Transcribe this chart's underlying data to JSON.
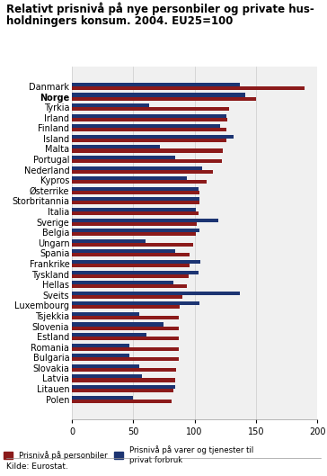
{
  "title_line1": "Relativt prisnivå på nye personbiler og private hus-",
  "title_line2": "holdningers konsum. 2004. EU25=100",
  "countries": [
    "Danmark",
    "Norge",
    "Tyrkia",
    "Irland",
    "Finland",
    "Island",
    "Malta",
    "Portugal",
    "Nederland",
    "Kypros",
    "Østerrike",
    "Storbritannia",
    "Italia",
    "Sverige",
    "Belgia",
    "Ungarn",
    "Spania",
    "Frankrike",
    "Tyskland",
    "Hellas",
    "Sveits",
    "Luxembourg",
    "Tsjekkia",
    "Slovenia",
    "Estland",
    "Romania",
    "Bulgaria",
    "Slovakia",
    "Latvia",
    "Litauen",
    "Polen"
  ],
  "cars": [
    190,
    150,
    128,
    127,
    126,
    126,
    123,
    122,
    115,
    110,
    104,
    104,
    103,
    102,
    101,
    99,
    96,
    96,
    95,
    94,
    90,
    88,
    87,
    87,
    87,
    87,
    87,
    85,
    84,
    83,
    81
  ],
  "consumption": [
    137,
    141,
    63,
    126,
    121,
    132,
    72,
    84,
    106,
    94,
    103,
    104,
    101,
    119,
    104,
    60,
    84,
    105,
    103,
    83,
    137,
    104,
    55,
    75,
    61,
    47,
    47,
    55,
    57,
    84,
    50
  ],
  "car_color": "#8B1A1A",
  "consumption_color": "#1C3472",
  "xlim": [
    0,
    200
  ],
  "xticks": [
    0,
    50,
    100,
    150,
    200
  ],
  "source": "Kilde: Eurostat.",
  "legend_car": "Prisnivå på personbiler",
  "legend_cons": "Prisnivå på varer og tjenester til\nprivat forbruk",
  "tick_fontsize": 7.0,
  "title_fontsize": 8.5
}
